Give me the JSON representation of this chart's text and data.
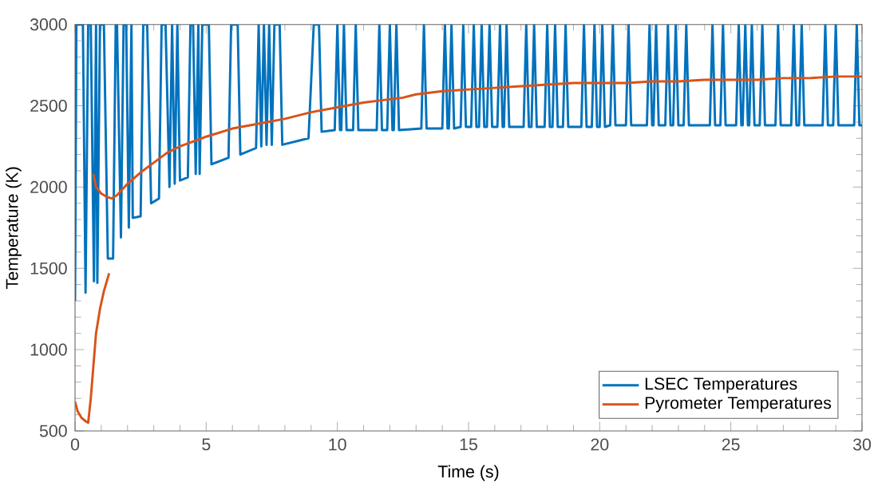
{
  "chart_data": {
    "type": "line",
    "xlabel": "Time (s)",
    "ylabel": "Temperature (K)",
    "xlim": [
      0,
      30
    ],
    "xticks": [
      0,
      5,
      10,
      15,
      20,
      25,
      30
    ],
    "ylim": [
      500,
      3000
    ],
    "yticks": [
      500,
      1000,
      1500,
      2000,
      2500,
      3000
    ],
    "grid": false,
    "legend": "bottom right",
    "marker": "none",
    "line_style": "solid",
    "series": [
      {
        "name": "LSEC Temperatures",
        "color": "#0072bd",
        "x": [
          0,
          0.05,
          0.3,
          0.4,
          0.5,
          0.6,
          0.72,
          0.8,
          0.85,
          0.95,
          1.1,
          1.25,
          1.45,
          1.55,
          1.6,
          1.75,
          1.85,
          1.95,
          2.05,
          2.15,
          2.2,
          2.5,
          2.6,
          2.75,
          2.9,
          3.2,
          3.3,
          3.45,
          3.6,
          3.7,
          3.8,
          3.9,
          4.0,
          4.3,
          4.4,
          4.5,
          4.6,
          4.7,
          4.75,
          4.85,
          5.1,
          5.2,
          5.85,
          5.95,
          6.2,
          6.3,
          6.9,
          7.0,
          7.1,
          7.2,
          7.3,
          7.4,
          7.5,
          7.6,
          7.8,
          7.9,
          8.9,
          9.1,
          9.3,
          9.4,
          9.9,
          10.0,
          10.1,
          10.15,
          10.25,
          10.35,
          10.6,
          10.7,
          10.8,
          11.5,
          11.6,
          11.7,
          11.9,
          12.0,
          12.1,
          12.15,
          12.25,
          12.35,
          13.2,
          13.3,
          13.4,
          14.0,
          14.1,
          14.2,
          14.25,
          14.35,
          14.45,
          14.7,
          14.8,
          14.9,
          15.1,
          15.2,
          15.3,
          15.4,
          15.5,
          15.6,
          15.7,
          15.8,
          15.9,
          16.1,
          16.2,
          16.3,
          16.35,
          16.45,
          16.55,
          17.1,
          17.2,
          17.3,
          17.4,
          17.5,
          17.6,
          17.9,
          18.0,
          18.1,
          18.2,
          18.3,
          18.4,
          18.6,
          18.7,
          18.8,
          19.3,
          19.4,
          19.5,
          19.7,
          19.8,
          19.9,
          20.0,
          20.1,
          20.2,
          20.4,
          20.5,
          20.6,
          21.0,
          21.1,
          21.2,
          21.8,
          21.9,
          22.0,
          22.05,
          22.15,
          22.25,
          22.5,
          22.6,
          22.7,
          22.8,
          22.9,
          23.0,
          23.2,
          23.3,
          23.4,
          24.2,
          24.3,
          24.4,
          24.6,
          24.7,
          24.8,
          25.2,
          25.3,
          25.4,
          25.45,
          25.55,
          25.65,
          25.7,
          25.8,
          25.9,
          26.1,
          26.2,
          26.3,
          26.7,
          26.8,
          26.9,
          27.3,
          27.4,
          27.5,
          27.6,
          27.7,
          27.8,
          28.5,
          28.6,
          28.7,
          28.9,
          29.0,
          29.1,
          29.7,
          29.8,
          29.9,
          30
        ],
        "values": [
          1300,
          3000,
          3000,
          1350,
          3000,
          3000,
          1420,
          3000,
          1410,
          3000,
          3000,
          1560,
          1560,
          3000,
          3000,
          1690,
          3000,
          3000,
          1750,
          3000,
          1810,
          1820,
          3000,
          3000,
          1900,
          1930,
          3000,
          3000,
          2000,
          3000,
          2020,
          3000,
          2040,
          2060,
          3000,
          3000,
          2080,
          3000,
          2080,
          3000,
          3000,
          2140,
          2180,
          3000,
          3000,
          2200,
          2240,
          3000,
          2250,
          3000,
          2260,
          3000,
          2260,
          3000,
          3000,
          2260,
          2300,
          3000,
          3000,
          2340,
          2350,
          3000,
          2350,
          2350,
          3000,
          2350,
          2350,
          3000,
          2350,
          2350,
          3000,
          2350,
          2350,
          3000,
          2350,
          2350,
          3000,
          2350,
          2360,
          3000,
          2360,
          2360,
          3000,
          2360,
          2360,
          3000,
          2360,
          2370,
          3000,
          2370,
          2370,
          3000,
          2370,
          2370,
          3000,
          2370,
          2370,
          3000,
          2370,
          2370,
          3000,
          2370,
          2370,
          3000,
          2370,
          2370,
          3000,
          2370,
          2370,
          3000,
          2370,
          2370,
          3000,
          2370,
          2370,
          3000,
          2370,
          2370,
          3000,
          2370,
          2370,
          3000,
          2370,
          2370,
          3000,
          2370,
          2370,
          3000,
          2370,
          2380,
          3000,
          2380,
          2380,
          3000,
          2380,
          2380,
          3000,
          2380,
          2380,
          3000,
          2380,
          2380,
          3000,
          2380,
          2380,
          3000,
          2380,
          2380,
          3000,
          2380,
          2380,
          3000,
          2380,
          2380,
          3000,
          2380,
          2380,
          3000,
          2380,
          2380,
          3000,
          2380,
          2380,
          3000,
          2380,
          2380,
          3000,
          2380,
          2380,
          3000,
          2380,
          2380,
          3000,
          2380,
          2380,
          3000,
          2380,
          2380,
          3000,
          2380,
          2380,
          3000,
          2380,
          2380,
          3000,
          2380,
          2380
        ]
      },
      {
        "name": "Pyrometer Temperatures",
        "color": "#d95319",
        "x": [
          0,
          0.1,
          0.25,
          0.4,
          0.5,
          0.6,
          0.7,
          0.8,
          0.95,
          1.1,
          1.3,
          null,
          0.7,
          0.8,
          1.0,
          1.2,
          1.4,
          1.6,
          2.0,
          2.5,
          3.0,
          3.5,
          4.0,
          5.0,
          6.0,
          7.0,
          8.0,
          9.0,
          10,
          11,
          12,
          12.5,
          13,
          14,
          15,
          16,
          17,
          18,
          19,
          20,
          21,
          22,
          23,
          24,
          25,
          26,
          27,
          28,
          29,
          30
        ],
        "values": [
          680,
          620,
          580,
          560,
          550,
          700,
          900,
          1100,
          1250,
          1360,
          1470,
          null,
          2080,
          2000,
          1960,
          1940,
          1930,
          1950,
          2020,
          2090,
          2150,
          2210,
          2250,
          2310,
          2360,
          2390,
          2420,
          2460,
          2490,
          2520,
          2540,
          2550,
          2570,
          2590,
          2600,
          2610,
          2620,
          2630,
          2640,
          2640,
          2640,
          2650,
          2650,
          2660,
          2660,
          2660,
          2670,
          2670,
          2680,
          2680
        ]
      }
    ]
  }
}
